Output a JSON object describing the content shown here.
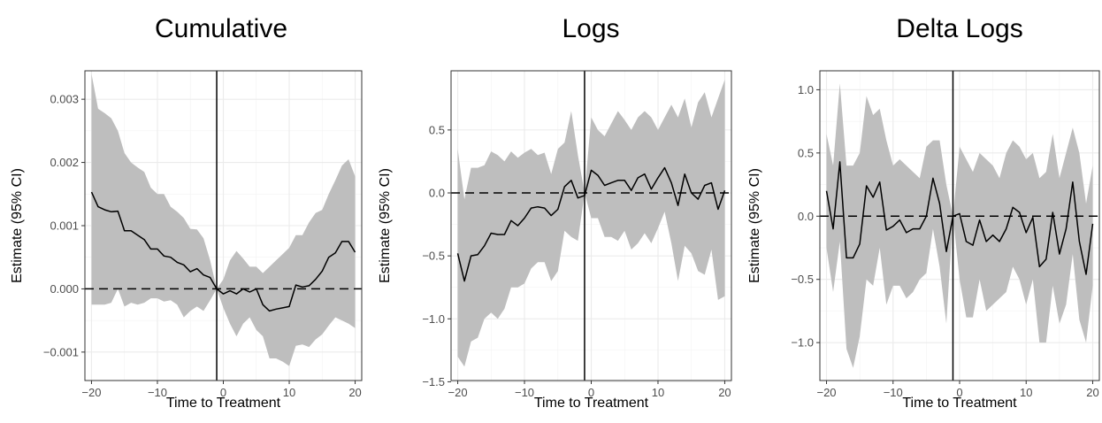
{
  "chart_data": [
    {
      "type": "line",
      "title": "Cumulative",
      "xlabel": "Time to Treatment",
      "ylabel": "Estimate (95% CI)",
      "xlim": [
        -21,
        21
      ],
      "ylim": [
        -0.00145,
        0.00345
      ],
      "xticks": [
        -20,
        -10,
        0,
        10,
        20
      ],
      "xtick_labels": [
        "−20",
        "−10",
        "0",
        "10",
        "20"
      ],
      "yticks": [
        -0.001,
        0,
        0.001,
        0.002,
        0.003
      ],
      "ytick_labels": [
        "−0.001",
        "0.000",
        "0.001",
        "0.002",
        "0.003"
      ],
      "vline_x": -1,
      "hline_y": 0,
      "x": [
        -20,
        -19,
        -18,
        -17,
        -16,
        -15,
        -14,
        -13,
        -12,
        -11,
        -10,
        -9,
        -8,
        -7,
        -6,
        -5,
        -4,
        -3,
        -2,
        -1,
        0,
        1,
        2,
        3,
        4,
        5,
        6,
        7,
        8,
        9,
        10,
        11,
        12,
        13,
        14,
        15,
        16,
        17,
        18,
        19,
        20
      ],
      "estimate": [
        0.00153,
        0.0013,
        0.00125,
        0.00122,
        0.00123,
        0.00092,
        0.00092,
        0.00085,
        0.00078,
        0.00063,
        0.00063,
        0.00052,
        0.0005,
        0.00042,
        0.00038,
        0.00027,
        0.00032,
        0.00022,
        0.00018,
        0.0,
        -8e-05,
        -3e-05,
        -8e-05,
        0.0,
        -5e-05,
        0.0,
        -0.00025,
        -0.00035,
        -0.00032,
        -0.0003,
        -0.00028,
        6e-05,
        3e-05,
        5e-05,
        0.00015,
        0.00028,
        0.0005,
        0.00057,
        0.00075,
        0.00075,
        0.00058
      ],
      "ci_upper": [
        0.0034,
        0.00285,
        0.00278,
        0.0027,
        0.0025,
        0.00215,
        0.002,
        0.00192,
        0.00185,
        0.0016,
        0.0015,
        0.0015,
        0.0013,
        0.00122,
        0.00112,
        0.00095,
        0.00094,
        0.0008,
        0.00045,
        0.0,
        0.00015,
        0.00045,
        0.0006,
        0.00048,
        0.00035,
        0.00035,
        0.00025,
        0.00035,
        0.00045,
        0.00055,
        0.00065,
        0.00085,
        0.00085,
        0.00105,
        0.0012,
        0.00125,
        0.0015,
        0.00172,
        0.00195,
        0.00205,
        0.00178
      ],
      "ci_lower": [
        -0.00025,
        -0.00025,
        -0.00025,
        -0.00022,
        0.0,
        -0.00028,
        -0.00022,
        -0.00025,
        -0.00022,
        -0.00015,
        -0.00015,
        -0.0002,
        -0.00018,
        -0.00025,
        -0.00045,
        -0.00035,
        -0.00028,
        -0.00035,
        -0.00018,
        0.0,
        -0.0003,
        -0.00055,
        -0.00075,
        -0.00055,
        -0.00045,
        -0.00065,
        -0.00075,
        -0.0011,
        -0.0011,
        -0.00115,
        -0.00122,
        -0.0009,
        -0.00088,
        -0.00092,
        -0.0008,
        -0.00072,
        -0.00058,
        -0.00045,
        -0.0005,
        -0.00055,
        -0.00062
      ]
    },
    {
      "type": "line",
      "title": "Logs",
      "xlabel": "Time to Treatment",
      "ylabel": "Estimate (95% CI)",
      "xlim": [
        -21,
        21
      ],
      "ylim": [
        -1.49,
        0.97
      ],
      "xticks": [
        -20,
        -10,
        0,
        10,
        20
      ],
      "xtick_labels": [
        "−20",
        "−10",
        "0",
        "10",
        "20"
      ],
      "yticks": [
        -1.5,
        -1.0,
        -0.5,
        0.0,
        0.5
      ],
      "ytick_labels": [
        "−1.5",
        "−1.0",
        "−0.5",
        "0.0",
        "0.5"
      ],
      "vline_x": -1,
      "hline_y": 0,
      "x": [
        -20,
        -19,
        -18,
        -17,
        -16,
        -15,
        -14,
        -13,
        -12,
        -11,
        -10,
        -9,
        -8,
        -7,
        -6,
        -5,
        -4,
        -3,
        -2,
        -1,
        0,
        1,
        2,
        3,
        4,
        5,
        6,
        7,
        8,
        9,
        10,
        11,
        12,
        13,
        14,
        15,
        16,
        17,
        18,
        19,
        20
      ],
      "estimate": [
        -0.48,
        -0.7,
        -0.5,
        -0.49,
        -0.42,
        -0.32,
        -0.33,
        -0.33,
        -0.22,
        -0.26,
        -0.2,
        -0.12,
        -0.11,
        -0.12,
        -0.18,
        -0.13,
        0.05,
        0.1,
        -0.04,
        -0.02,
        0.18,
        0.14,
        0.06,
        0.08,
        0.1,
        0.1,
        0.02,
        0.12,
        0.15,
        0.03,
        0.12,
        0.2,
        0.08,
        -0.1,
        0.15,
        0.0,
        -0.05,
        0.06,
        0.08,
        -0.13,
        0.02
      ],
      "ci_upper": [
        0.35,
        -0.05,
        0.2,
        0.2,
        0.22,
        0.33,
        0.3,
        0.25,
        0.33,
        0.28,
        0.32,
        0.35,
        0.3,
        0.32,
        0.15,
        0.35,
        0.4,
        0.65,
        0.3,
        0.0,
        0.6,
        0.5,
        0.45,
        0.55,
        0.65,
        0.58,
        0.5,
        0.6,
        0.65,
        0.6,
        0.5,
        0.6,
        0.7,
        0.6,
        0.75,
        0.52,
        0.72,
        0.8,
        0.6,
        0.75,
        0.9
      ],
      "ci_lower": [
        -1.3,
        -1.38,
        -1.18,
        -1.15,
        -1.0,
        -0.95,
        -1.0,
        -0.92,
        -0.75,
        -0.75,
        -0.72,
        -0.6,
        -0.55,
        -0.55,
        -0.7,
        -0.62,
        -0.3,
        -0.35,
        -0.38,
        0.0,
        -0.2,
        -0.2,
        -0.35,
        -0.35,
        -0.38,
        -0.3,
        -0.45,
        -0.4,
        -0.32,
        -0.4,
        -0.28,
        -0.15,
        -0.4,
        -0.7,
        -0.42,
        -0.48,
        -0.62,
        -0.65,
        -0.45,
        -0.85,
        -0.82
      ]
    },
    {
      "type": "line",
      "title": "Delta Logs",
      "xlabel": "Time to Treatment",
      "ylabel": "Estimate (95% CI)",
      "xlim": [
        -21,
        21
      ],
      "ylim": [
        -1.3,
        1.15
      ],
      "xticks": [
        -20,
        -10,
        0,
        10,
        20
      ],
      "xtick_labels": [
        "−20",
        "−10",
        "0",
        "10",
        "20"
      ],
      "yticks": [
        -1.0,
        -0.5,
        0.0,
        0.5,
        1.0
      ],
      "ytick_labels": [
        "−1.0",
        "−0.5",
        "0.0",
        "0.5",
        "1.0"
      ],
      "vline_x": -1,
      "hline_y": 0,
      "x": [
        -20,
        -19,
        -18,
        -17,
        -16,
        -15,
        -14,
        -13,
        -12,
        -11,
        -10,
        -9,
        -8,
        -7,
        -6,
        -5,
        -4,
        -3,
        -2,
        -1,
        0,
        1,
        2,
        3,
        4,
        5,
        6,
        7,
        8,
        9,
        10,
        11,
        12,
        13,
        14,
        15,
        16,
        17,
        18,
        19,
        20
      ],
      "estimate": [
        0.2,
        -0.1,
        0.43,
        -0.33,
        -0.33,
        -0.22,
        0.24,
        0.15,
        0.27,
        -0.11,
        -0.08,
        -0.03,
        -0.13,
        -0.1,
        -0.1,
        0.0,
        0.3,
        0.1,
        -0.28,
        0.0,
        0.02,
        -0.2,
        -0.23,
        -0.03,
        -0.2,
        -0.15,
        -0.2,
        -0.1,
        0.07,
        0.03,
        -0.13,
        -0.01,
        -0.4,
        -0.34,
        0.03,
        -0.3,
        -0.1,
        0.27,
        -0.2,
        -0.46,
        -0.06
      ],
      "ci_upper": [
        0.65,
        0.4,
        1.05,
        0.4,
        0.4,
        0.5,
        0.95,
        0.8,
        0.85,
        0.6,
        0.4,
        0.45,
        0.4,
        0.35,
        0.3,
        0.55,
        0.6,
        0.6,
        0.25,
        0.0,
        0.55,
        0.45,
        0.35,
        0.5,
        0.45,
        0.4,
        0.3,
        0.5,
        0.6,
        0.55,
        0.45,
        0.5,
        0.3,
        0.35,
        0.65,
        0.3,
        0.5,
        0.7,
        0.5,
        0.1,
        0.4
      ],
      "ci_lower": [
        -0.25,
        -0.6,
        -0.2,
        -1.05,
        -1.2,
        -0.95,
        -0.5,
        -0.55,
        -0.25,
        -0.7,
        -0.55,
        -0.55,
        -0.65,
        -0.6,
        -0.5,
        -0.45,
        -0.1,
        -0.4,
        -0.85,
        0.0,
        -0.5,
        -0.8,
        -0.8,
        -0.5,
        -0.75,
        -0.7,
        -0.65,
        -0.6,
        -0.4,
        -0.5,
        -0.7,
        -0.5,
        -1.0,
        -1.0,
        -0.55,
        -0.85,
        -0.7,
        -0.3,
        -0.82,
        -1.0,
        -0.55
      ]
    }
  ]
}
